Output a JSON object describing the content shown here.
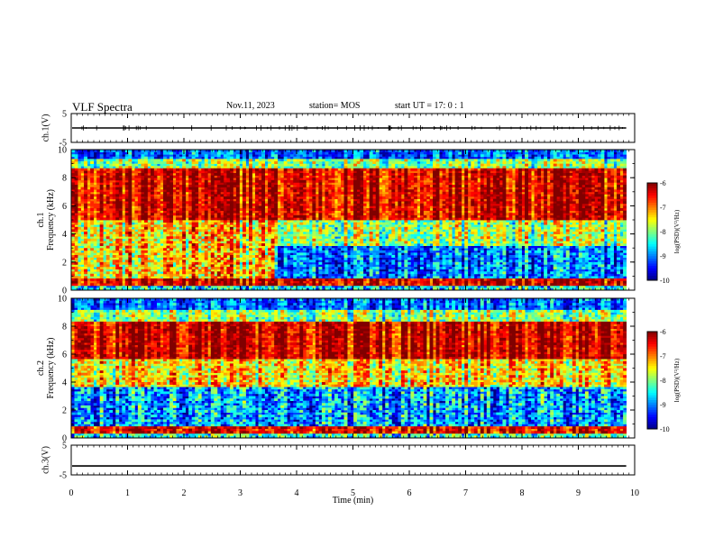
{
  "header": {
    "title": "VLF Spectra",
    "date": "Nov.11, 2023",
    "station": "station= MOS",
    "start": "start  UT =   17: 0  : 1"
  },
  "chart_data": [
    {
      "type": "line",
      "panel": "ch.1 waveform",
      "ylabel": "ch.1(V)",
      "ylim": [
        -5,
        5
      ],
      "yticks": [
        5,
        -5
      ],
      "level": 0,
      "xlim": [
        0,
        10
      ]
    },
    {
      "type": "heatmap",
      "panel": "ch.1 spectrogram",
      "ylabel": "ch.1\nFrequency (kHz)",
      "ylim": [
        0,
        10
      ],
      "yticks": [
        0,
        2,
        4,
        6,
        8,
        10
      ],
      "xlim": [
        0,
        9.85
      ],
      "colorbar": {
        "label": "log(PSD)(V²/Hz)",
        "range": [
          -10,
          -6
        ],
        "ticks": [
          "-6",
          "-7",
          "-8",
          "-9",
          "-10"
        ]
      }
    },
    {
      "type": "heatmap",
      "panel": "ch.2 spectrogram",
      "ylabel": "ch.2\nFrequency (kHz)",
      "ylim": [
        0,
        10
      ],
      "yticks": [
        0,
        2,
        4,
        6,
        8,
        10
      ],
      "xlim": [
        0,
        9.85
      ],
      "colorbar": {
        "label": "log(PSD)(V²/Hz)",
        "range": [
          -10,
          -6
        ],
        "ticks": [
          "-6",
          "-7",
          "-8",
          "-9",
          "-10"
        ]
      }
    },
    {
      "type": "line",
      "panel": "ch.3 waveform",
      "ylabel": "ch.3(V)",
      "ylim": [
        -5,
        5
      ],
      "yticks": [
        5,
        -5
      ],
      "level": -2,
      "xlim": [
        0,
        10
      ]
    }
  ],
  "x_axis": {
    "label": "Time (min)",
    "range": [
      0,
      10
    ],
    "ticks": [
      "0",
      "1",
      "2",
      "3",
      "4",
      "5",
      "6",
      "7",
      "8",
      "9",
      "10"
    ]
  }
}
